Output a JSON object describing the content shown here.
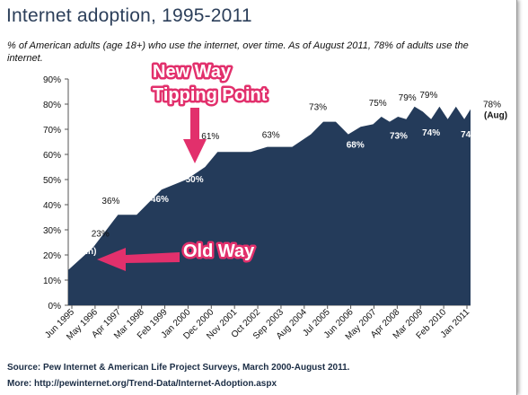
{
  "title": "Internet adoption, 1995-2011",
  "subtitle": "% of American adults (age 18+) who use the internet, over time. As of August 2011, 78% of adults use the internet.",
  "source": "Source: Pew Internet & American Life Project Surveys, March 2000-August 2011.",
  "more": "More: http://pewinternet.org/Trend-Data/Internet-Adoption.aspx",
  "colors": {
    "area": "#243b5a",
    "annotation": "#e2306c",
    "title": "#2c3f5a"
  },
  "annotations": {
    "new_way_line1": "New Way",
    "new_way_line2": "Tipping Point",
    "old_way": "Old Way"
  },
  "chart_data": {
    "type": "area",
    "ylim": [
      0,
      90
    ],
    "yticks": [
      "0%",
      "10%",
      "20%",
      "30%",
      "40%",
      "50%",
      "60%",
      "70%",
      "80%",
      "90%"
    ],
    "xticks": [
      "Jun 1995",
      "May 1996",
      "Apr 1997",
      "Mar 1998",
      "Feb 1999",
      "Jan 2000",
      "Dec 2000",
      "Nov 2001",
      "Oct 2002",
      "Sep 2003",
      "Aug 2004",
      "Jul 2005",
      "Jun 2006",
      "May 2007",
      "Apr 2008",
      "Mar 2009",
      "Feb 2010",
      "Jan 2011"
    ],
    "points": [
      {
        "t": "1995-06",
        "y": 14
      },
      {
        "t": "1996-06",
        "y": 23
      },
      {
        "t": "1997-06",
        "y": 36
      },
      {
        "t": "1998-03",
        "y": 36
      },
      {
        "t": "1999-03",
        "y": 46
      },
      {
        "t": "2000-03",
        "y": 50
      },
      {
        "t": "2000-12",
        "y": 55
      },
      {
        "t": "2001-06",
        "y": 61
      },
      {
        "t": "2002-10",
        "y": 61
      },
      {
        "t": "2003-06",
        "y": 63
      },
      {
        "t": "2004-06",
        "y": 63
      },
      {
        "t": "2005-03",
        "y": 68
      },
      {
        "t": "2005-09",
        "y": 73
      },
      {
        "t": "2006-03",
        "y": 73
      },
      {
        "t": "2006-09",
        "y": 68
      },
      {
        "t": "2007-03",
        "y": 71
      },
      {
        "t": "2007-09",
        "y": 72
      },
      {
        "t": "2008-01",
        "y": 75
      },
      {
        "t": "2008-05",
        "y": 73
      },
      {
        "t": "2008-09",
        "y": 75
      },
      {
        "t": "2009-01",
        "y": 74
      },
      {
        "t": "2009-05",
        "y": 79
      },
      {
        "t": "2009-09",
        "y": 77
      },
      {
        "t": "2010-01",
        "y": 74
      },
      {
        "t": "2010-05",
        "y": 79
      },
      {
        "t": "2010-09",
        "y": 74
      },
      {
        "t": "2011-01",
        "y": 79
      },
      {
        "t": "2011-05",
        "y": 74
      },
      {
        "t": "2011-08",
        "y": 78
      }
    ],
    "data_labels": [
      {
        "t": "1995-06",
        "y": 14,
        "text": "14%",
        "sub": "(Jun)",
        "color": "#ffffff"
      },
      {
        "t": "1996-06",
        "y": 23,
        "text": "23%",
        "color": "#111111"
      },
      {
        "t": "1997-06",
        "y": 36,
        "text": "36%",
        "color": "#111111"
      },
      {
        "t": "1999-03",
        "y": 46,
        "text": "46%",
        "color": "#ffffff"
      },
      {
        "t": "2000-03",
        "y": 50,
        "text": "50%",
        "color": "#ffffff"
      },
      {
        "t": "2001-06",
        "y": 61,
        "text": "61%",
        "color": "#111111"
      },
      {
        "t": "2003-06",
        "y": 63,
        "text": "63%",
        "color": "#111111"
      },
      {
        "t": "2006-09",
        "y": 68,
        "text": "68%",
        "color": "#ffffff"
      },
      {
        "t": "2005-09",
        "y": 73,
        "text": "73%",
        "color": "#111111"
      },
      {
        "t": "2008-01",
        "y": 75,
        "text": "75%",
        "color": "#111111"
      },
      {
        "t": "2008-05",
        "y": 73,
        "text": "73%",
        "color": "#ffffff"
      },
      {
        "t": "2009-05",
        "y": 79,
        "text": "79%",
        "color": "#111111"
      },
      {
        "t": "2010-05",
        "y": 79,
        "text": "79%",
        "color": "#111111"
      },
      {
        "t": "2010-01",
        "y": 74,
        "text": "74%",
        "color": "#ffffff"
      },
      {
        "t": "2011-05",
        "y": 74,
        "text": "74%",
        "color": "#ffffff"
      },
      {
        "t": "2011-08",
        "y": 78,
        "text": "78%",
        "sub": "(Aug)",
        "color": "#111111"
      }
    ],
    "grid": false,
    "legend": "none"
  }
}
